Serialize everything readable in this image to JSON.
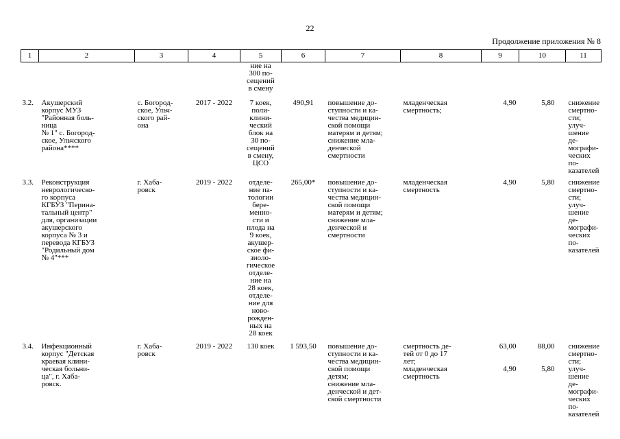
{
  "page_number": "22",
  "appendix_caption": "Продолжение приложения № 8",
  "header": [
    "1",
    "2",
    "3",
    "4",
    "5",
    "6",
    "7",
    "8",
    "9",
    "10",
    "11"
  ],
  "continuation": {
    "col5": "ние на\n300 по-\nсещений\nв смену"
  },
  "rows": [
    {
      "num": "3.2.",
      "name": "Акушерский\nкорпус МУЗ\n\"Районная боль-\nница\n№ 1\" с. Богород-\nское, Ульчского\nрайона****",
      "location": "с. Богород-\nское, Ульч-\nского рай-\nона",
      "period": "2017 - 2022",
      "capacity": "7 коек,\nполи-\nклини-\nческий\nблок на\n30 по-\nсещений\nв смену,\nЦСО",
      "cost": "490,91",
      "goal": "повышение до-\nступности и ка-\nчества медицин-\nской помощи\nматерям и детям;\nснижение мла-\nденческой\nсмертности",
      "indicator": "младенческая\nсмертность;",
      "val9": "4,90",
      "val10": "5,80",
      "effect": "снижение\nсмертно-\nсти; улуч-\nшение де-\nмографи-\nческих по-\nказателей"
    },
    {
      "num": "3.3.",
      "name": "Реконструкция\nневрологическо-\nго корпуса\nКГБУЗ \"Перина-\nтальный центр\"\nдля, организации\nакушерского\nкорпуса № 3 и\nперевода КГБУЗ\n\"Родильный дом\n№ 4\"***",
      "location": "г. Хаба-\nровск",
      "period": "2019 - 2022",
      "capacity": "отделе-\nние па-\nтологии\nбере-\nменно-\nсти и\nплода на\n9 коек,\nакушер-\nское фи-\nзиоло-\nгическое\nотделе-\nние на\n28 коек,\nотделе-\nние для\nново-\nрожден-\nных на\n28 коек",
      "cost": "265,00*",
      "goal": "повышение до-\nступности и ка-\nчества медицин-\nской помощи\nматерям и детям;\nснижение мла-\nденческой и\nсмертности",
      "indicator": "младенческая\nсмертность",
      "val9": "4,90",
      "val10": "5,80",
      "effect": "снижение\nсмертно-\nсти; улуч-\nшение де-\nмографи-\nческих по-\nказателей"
    },
    {
      "num": "3.4.",
      "name": "Инфекционный\nкорпус \"Детская\nкраевая клини-\nческая больни-\nца\", г. Хаба-\nровск.",
      "location": "г. Хаба-\nровск",
      "period": "2019 - 2022",
      "capacity": "130 коек",
      "cost": "1 593,50",
      "goal": "повышение до-\nступности и ка-\nчества медицин-\nской помощи\nдетям;\nснижение мла-\nденческой и дет-\nской смертности",
      "indicator": "смертность де-\nтей от 0 до 17\nлет;\nмладенческая\nсмертность",
      "val9": "63,00\n\n\n4,90",
      "val10": "88,00\n\n\n5,80",
      "effect": "снижение\nсмертно-\nсти; улуч-\nшение де-\nмографи-\nческих по-\nказателей"
    }
  ]
}
